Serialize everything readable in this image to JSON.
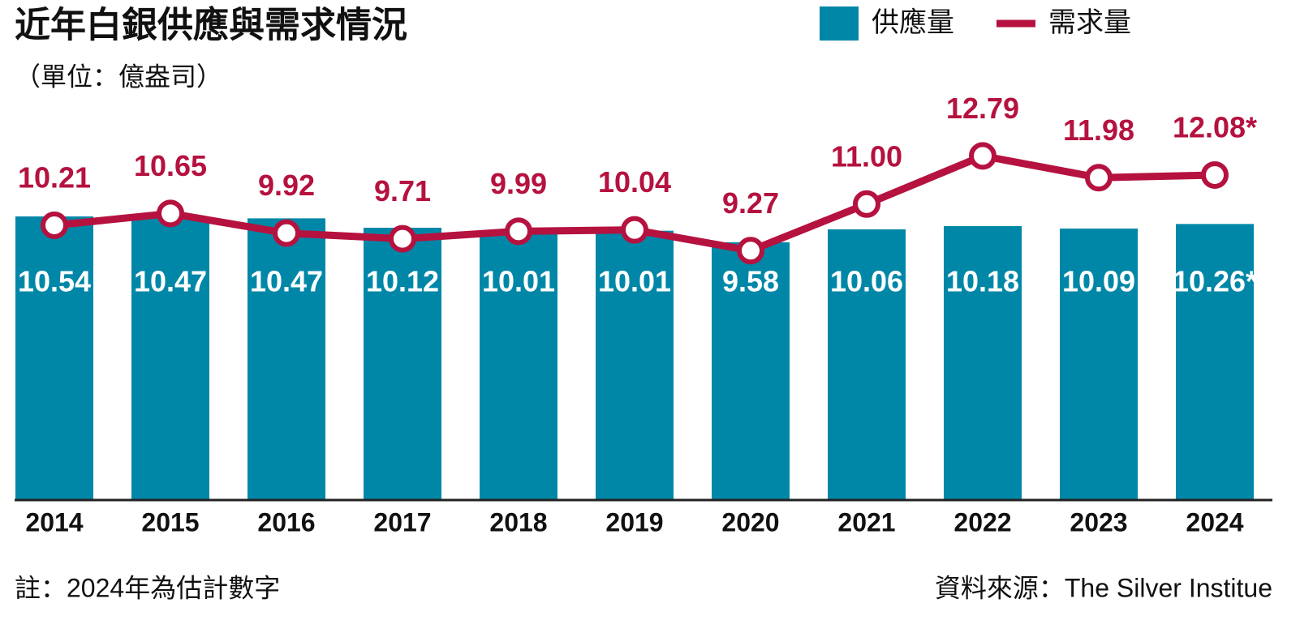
{
  "chart_data": {
    "type": "bar",
    "title": "近年白銀供應與需求情況",
    "subtitle": "（單位：億盎司）",
    "note": "註：2024年為估計數字",
    "source": "資料來源：The Silver Institue",
    "categories": [
      "2014",
      "2015",
      "2016",
      "2017",
      "2018",
      "2019",
      "2020",
      "2021",
      "2022",
      "2023",
      "2024"
    ],
    "series": [
      {
        "name": "供應量",
        "type": "bar",
        "color": "#0087a8",
        "values": [
          10.54,
          10.47,
          10.47,
          10.12,
          10.01,
          10.01,
          9.58,
          10.06,
          10.18,
          10.09,
          10.26
        ],
        "value_labels": [
          "10.54",
          "10.47",
          "10.47",
          "10.12",
          "10.01",
          "10.01",
          "9.58",
          "10.06",
          "10.18",
          "10.09",
          "10.26*"
        ]
      },
      {
        "name": "需求量",
        "type": "line",
        "color": "#b5123f",
        "values": [
          10.21,
          10.65,
          9.92,
          9.71,
          9.99,
          10.04,
          9.27,
          11.0,
          12.79,
          11.98,
          12.08
        ],
        "value_labels": [
          "10.21",
          "10.65",
          "9.92",
          "9.71",
          "9.99",
          "10.04",
          "9.27",
          "11.00",
          "12.79",
          "11.98",
          "12.08*"
        ]
      }
    ],
    "ylim": [
      0,
      14
    ]
  }
}
